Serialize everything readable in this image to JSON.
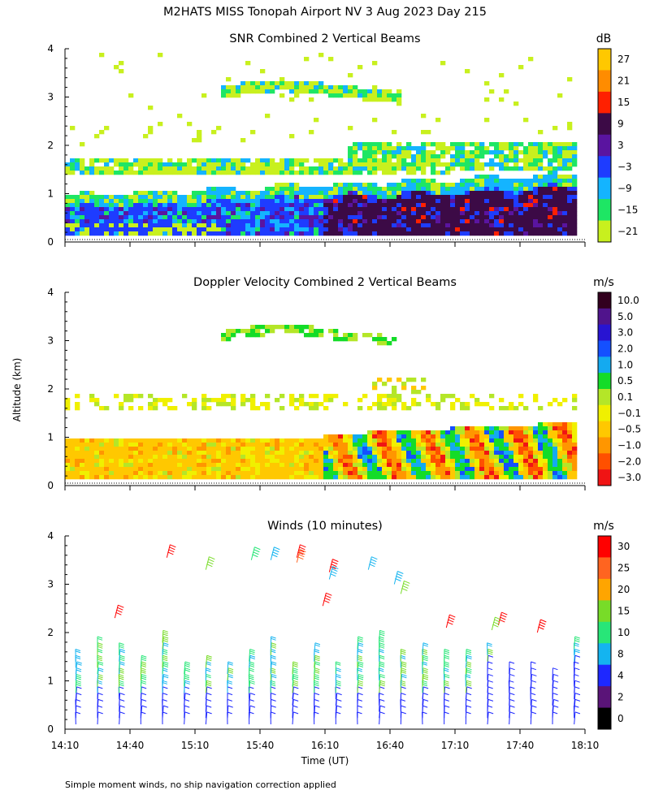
{
  "title": "M2HATS MISS Tonopah Airport NV   3 Aug 2023 Day 215",
  "ylabel": "Altitude (km)",
  "xlabel": "Time (UT)",
  "footnote": "Simple moment winds, no ship navigation correction applied",
  "chart_data": [
    {
      "type": "heatmap",
      "title": "SNR Combined 2 Vertical Beams",
      "unit": "dB",
      "x_range_hours": [
        14.1667,
        18.1667
      ],
      "ylim": [
        0,
        4
      ],
      "y_ticks": [
        "0",
        "1",
        "2",
        "3",
        "4"
      ],
      "colorbar": {
        "labels": [
          "27",
          "21",
          "15",
          "9",
          "3",
          "−3",
          "−9",
          "−15",
          "−21"
        ],
        "colors": [
          "#FFC800",
          "#FF8C00",
          "#FF2000",
          "#3C0A46",
          "#5A14A0",
          "#1E3CFF",
          "#14B4FF",
          "#1EE664",
          "#C8F01E"
        ]
      },
      "layers": [
        {
          "name": "weak-signal-upper",
          "level": "-21",
          "altitude_km": [
            1.5,
            2.2
          ]
        },
        {
          "name": "weak-signal-arc",
          "level": "-21",
          "altitude_km": [
            3.0,
            3.4
          ]
        },
        {
          "name": "moderate-band",
          "level": "-9",
          "altitude_km": [
            0.5,
            1.2
          ]
        },
        {
          "name": "strong-core",
          "level": "3",
          "altitude_km": [
            0.3,
            1.0
          ]
        },
        {
          "name": "max-core",
          "level": "9",
          "altitude_km": [
            0.2,
            1.2
          ],
          "time_range": [
            "16:00",
            "18:10"
          ]
        }
      ]
    },
    {
      "type": "heatmap",
      "title": "Doppler Velocity Combined 2 Vertical Beams",
      "unit": "m/s",
      "x_range_hours": [
        14.1667,
        18.1667
      ],
      "ylim": [
        0,
        4
      ],
      "y_ticks": [
        "0",
        "1",
        "2",
        "3",
        "4"
      ],
      "colorbar": {
        "labels": [
          "10.0",
          "5.0",
          "3.0",
          "2.0",
          "1.0",
          "0.5",
          "0.1",
          "−0.1",
          "−0.5",
          "−1.0",
          "−2.0",
          "−3.0"
        ],
        "colors": [
          "#32001E",
          "#50148C",
          "#2814D2",
          "#1450FF",
          "#14AAF0",
          "#14DC28",
          "#B4E628",
          "#F0F000",
          "#FFC800",
          "#FF9600",
          "#FF5000",
          "#F01414"
        ]
      },
      "layers": [
        {
          "name": "downdraft-layer",
          "level": "-0.5",
          "altitude_km": [
            0.15,
            1.0
          ]
        },
        {
          "name": "mixed-layer",
          "level": "-0.1",
          "altitude_km": [
            0.2,
            1.7
          ],
          "time_range": [
            "16:00",
            "18:10"
          ]
        }
      ]
    },
    {
      "type": "barbs",
      "title": "Winds (10 minutes)",
      "unit": "m/s",
      "x_range_hours": [
        14.1667,
        18.1667
      ],
      "ylim": [
        0,
        4
      ],
      "y_ticks": [
        "0",
        "1",
        "2",
        "3",
        "4"
      ],
      "x_ticks": [
        "14:10",
        "14:40",
        "15:10",
        "15:40",
        "16:10",
        "16:40",
        "17:10",
        "17:40",
        "18:10"
      ],
      "x_tick_hours": [
        14.1667,
        14.6667,
        15.1667,
        15.6667,
        16.1667,
        16.6667,
        17.1667,
        17.6667,
        18.1667
      ],
      "colorbar": {
        "labels": [
          "30",
          "25",
          "20",
          "15",
          "10",
          "8",
          "4",
          "2",
          "0"
        ],
        "colors": [
          "#FF0000",
          "#FF6420",
          "#FFA500",
          "#78DC28",
          "#28E678",
          "#14B4F0",
          "#1E28FF",
          "#5A1478",
          "#000000"
        ]
      },
      "barb_interval_minutes": 10
    }
  ]
}
